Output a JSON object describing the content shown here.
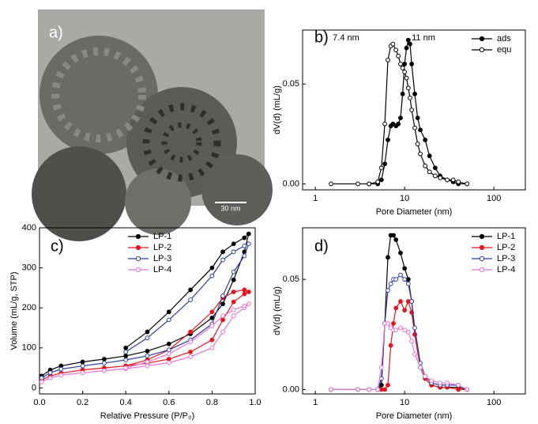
{
  "image": {
    "panel_label": "a)",
    "scale_bar": "30 nm"
  },
  "chart_data": [
    {
      "type": "line",
      "panel_label": "b)",
      "x_label": "Pore Diameter (nm)",
      "y_label": "dV(d) (mL/g)",
      "annotations": [
        "7.4 nm",
        "11 nm"
      ],
      "xscale": "log",
      "legend": "upper right",
      "xlim": [
        0.72,
        225
      ],
      "xticks": [
        1,
        10,
        100
      ],
      "ylim": [
        -0.003,
        0.077
      ],
      "yticks": [
        {
          "value": 0,
          "label": "0.00"
        },
        {
          "value": 0.05,
          "label": "0.05"
        }
      ],
      "x": [
        1.5,
        3,
        4,
        5,
        5.5,
        6,
        6.5,
        7,
        7.4,
        8,
        8.5,
        9,
        9.5,
        10,
        10.5,
        11,
        11.5,
        12,
        13,
        14,
        15,
        17,
        19,
        22,
        25,
        30,
        35,
        40,
        50
      ],
      "series": [
        {
          "name": "ads",
          "color": "#000000",
          "marker": "filled",
          "values": [
            null,
            null,
            0,
            0,
            0.002,
            0.01,
            0.022,
            0.029,
            0.03,
            0.029,
            0.03,
            0.033,
            0.045,
            0.06,
            0.068,
            0.072,
            0.07,
            0.06,
            0.045,
            0.033,
            0.027,
            0.022,
            0.014,
            0.008,
            0.004,
            0.002,
            0.001,
            0,
            0
          ]
        },
        {
          "name": "equ",
          "color": "#000000",
          "marker": "open",
          "values": [
            0,
            0,
            0,
            0.001,
            0.008,
            0.03,
            0.062,
            0.069,
            0.07,
            0.067,
            0.064,
            0.06,
            0.058,
            0.056,
            0.053,
            0.048,
            0.043,
            0.037,
            0.028,
            0.02,
            0.015,
            0.009,
            0.006,
            0.004,
            0.003,
            0.002,
            0.002,
            0.001,
            0
          ]
        }
      ]
    },
    {
      "type": "line",
      "panel_label": "c)",
      "x_label": "Relative Pressure (P/P₀)",
      "y_label": "Volume (mL/g, STP)",
      "xscale": "linear",
      "legend": "upper center",
      "xlim": [
        0,
        1.0
      ],
      "xticks": [
        {
          "value": 0,
          "label": "0.0"
        },
        0.2,
        0.4,
        0.6,
        0.8,
        {
          "value": 1.0,
          "label": "1.0"
        }
      ],
      "ylim": [
        -15,
        400
      ],
      "yticks": [
        0,
        100,
        200,
        300,
        400
      ],
      "x": [
        0.01,
        0.05,
        0.1,
        0.2,
        0.3,
        0.4,
        0.5,
        0.6,
        0.7,
        0.8,
        0.85,
        0.9,
        0.95,
        0.97,
        0.95,
        0.9,
        0.85,
        0.8,
        0.7,
        0.6,
        0.5,
        0.4
      ],
      "series": [
        {
          "name": "LP-1",
          "color": "#000000",
          "marker": "filled",
          "values": [
            30,
            45,
            55,
            65,
            72,
            80,
            92,
            110,
            135,
            175,
            210,
            270,
            340,
            385,
            375,
            360,
            340,
            300,
            245,
            190,
            140,
            100
          ]
        },
        {
          "name": "LP-2",
          "color": "#e8141b",
          "marker": "filled",
          "values": [
            20,
            30,
            37,
            45,
            50,
            55,
            62,
            72,
            90,
            120,
            170,
            215,
            235,
            240,
            245,
            240,
            225,
            190,
            140,
            95,
            70,
            55
          ]
        },
        {
          "name": "LP-3",
          "color": "#2b3fa8",
          "marker": "open",
          "values": [
            25,
            38,
            47,
            55,
            62,
            70,
            80,
            95,
            120,
            160,
            230,
            290,
            330,
            360,
            355,
            340,
            320,
            280,
            220,
            170,
            125,
            90
          ]
        },
        {
          "name": "LP-4",
          "color": "#e872d8",
          "marker": "open",
          "values": [
            15,
            25,
            32,
            38,
            43,
            48,
            55,
            63,
            78,
            100,
            140,
            180,
            200,
            210,
            205,
            195,
            180,
            155,
            115,
            85,
            65,
            50
          ]
        }
      ]
    },
    {
      "type": "line",
      "panel_label": "d)",
      "x_label": "Pore Diameter (nm)",
      "y_label": "dV(d) (mL/g)",
      "xscale": "log",
      "legend": "upper right",
      "xlim": [
        0.72,
        225
      ],
      "xticks": [
        1,
        10,
        100
      ],
      "ylim": [
        -0.002,
        0.0734
      ],
      "yticks": [
        {
          "value": 0,
          "label": "0.00"
        },
        {
          "value": 0.05,
          "label": "0.05"
        }
      ],
      "x": [
        1.5,
        3,
        4,
        5,
        5.5,
        6,
        6.5,
        7,
        7.5,
        8,
        9,
        10,
        11,
        12,
        13,
        15,
        17,
        20,
        25,
        30,
        40,
        50
      ],
      "series": [
        {
          "name": "LP-1",
          "color": "#000000",
          "marker": "filled",
          "values": [
            0,
            0,
            0,
            0,
            0.002,
            0.03,
            0.06,
            0.07,
            0.07,
            0.068,
            0.062,
            0.055,
            0.05,
            0.04,
            0.025,
            0.01,
            0.005,
            0.002,
            0.001,
            0.001,
            0.001,
            0
          ]
        },
        {
          "name": "LP-2",
          "color": "#e8141b",
          "marker": "filled",
          "values": [
            null,
            null,
            null,
            0,
            0,
            0,
            0.002,
            0.02,
            0.03,
            0.037,
            0.04,
            0.036,
            0.04,
            0.035,
            0.025,
            0.01,
            0.005,
            0.002,
            0.001,
            0.001,
            0,
            0
          ]
        },
        {
          "name": "LP-3",
          "color": "#2b3fa8",
          "marker": "open",
          "values": [
            0,
            0,
            0,
            0,
            0.005,
            0.03,
            0.045,
            0.048,
            0.05,
            0.05,
            0.052,
            0.05,
            0.048,
            0.04,
            0.028,
            0.012,
            0.006,
            0.003,
            0.002,
            0.002,
            0.002,
            0
          ]
        },
        {
          "name": "LP-4",
          "color": "#e872d8",
          "marker": "open",
          "values": [
            0,
            0,
            0,
            0,
            0.01,
            0.03,
            0.03,
            0.028,
            0.027,
            0.027,
            0.028,
            0.027,
            0.026,
            0.022,
            0.016,
            0.01,
            0.006,
            0.004,
            0.003,
            0.003,
            0.002,
            0
          ]
        }
      ]
    }
  ]
}
